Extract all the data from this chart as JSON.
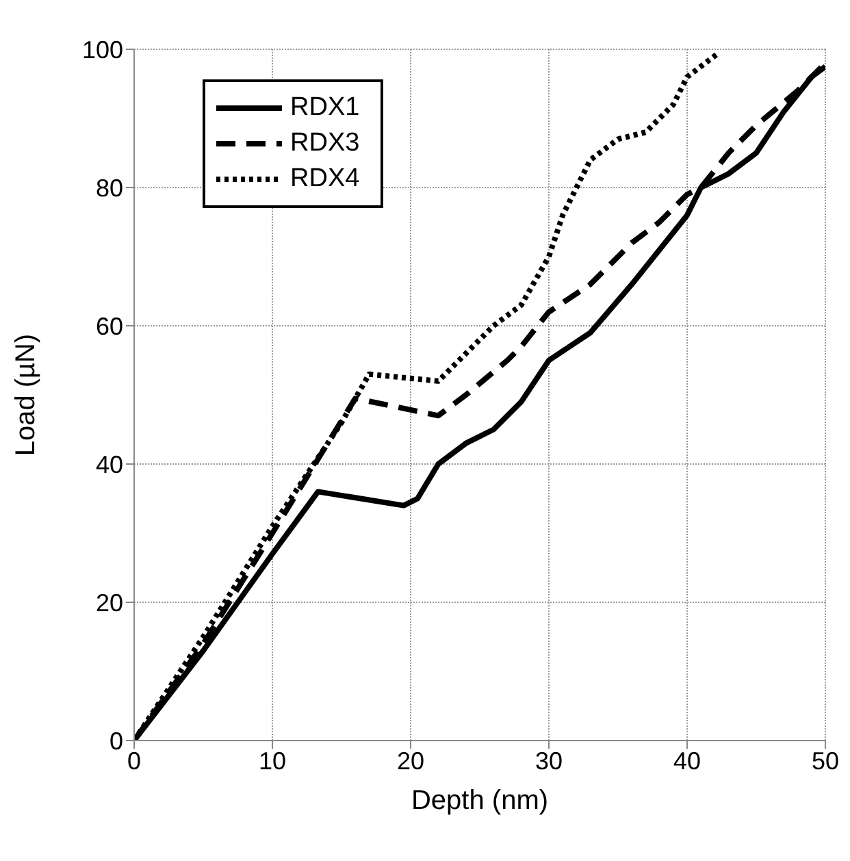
{
  "chart_data": {
    "type": "line",
    "xlabel": "Depth (nm)",
    "ylabel": "Load (µN)",
    "xlim": [
      0,
      50
    ],
    "xticks": [
      0,
      10,
      20,
      30,
      40,
      50
    ],
    "ylim": [
      0,
      100
    ],
    "yticks": [
      0,
      20,
      40,
      60,
      80,
      100
    ],
    "grid": true,
    "legend": "top left",
    "marker": "none",
    "series": [
      {
        "name": "RDX1",
        "color": "#000000",
        "line_style": "solid",
        "x": [
          0,
          5,
          10,
          13.3,
          19.5,
          20.5,
          22,
          24,
          26,
          28,
          30,
          33,
          36,
          40,
          41,
          43,
          45,
          47,
          49,
          50
        ],
        "values": [
          0,
          13,
          27,
          36,
          34,
          35,
          40,
          43,
          45,
          49,
          55,
          59,
          66,
          76,
          80,
          82,
          85,
          91,
          96,
          97.5
        ]
      },
      {
        "name": "RDX3",
        "color": "#000000",
        "line_style": "dashed",
        "x": [
          0,
          5,
          10,
          16,
          22,
          24,
          27,
          28,
          30,
          33,
          36,
          38,
          40,
          41,
          43,
          45,
          48,
          50
        ],
        "values": [
          0,
          14,
          30,
          49.5,
          47,
          50,
          55,
          57,
          62,
          66,
          72,
          75,
          79,
          80,
          85,
          89,
          94,
          98
        ]
      },
      {
        "name": "RDX4",
        "color": "#000000",
        "line_style": "dotted",
        "x": [
          0,
          5,
          10,
          15,
          17,
          22,
          24,
          26,
          28,
          30,
          31,
          32,
          33,
          35,
          37,
          39,
          40,
          42.3
        ],
        "values": [
          0,
          15,
          31,
          46,
          53,
          52,
          56,
          60,
          63,
          70,
          76,
          80,
          84,
          87,
          88,
          92,
          96,
          99.5
        ]
      }
    ]
  }
}
